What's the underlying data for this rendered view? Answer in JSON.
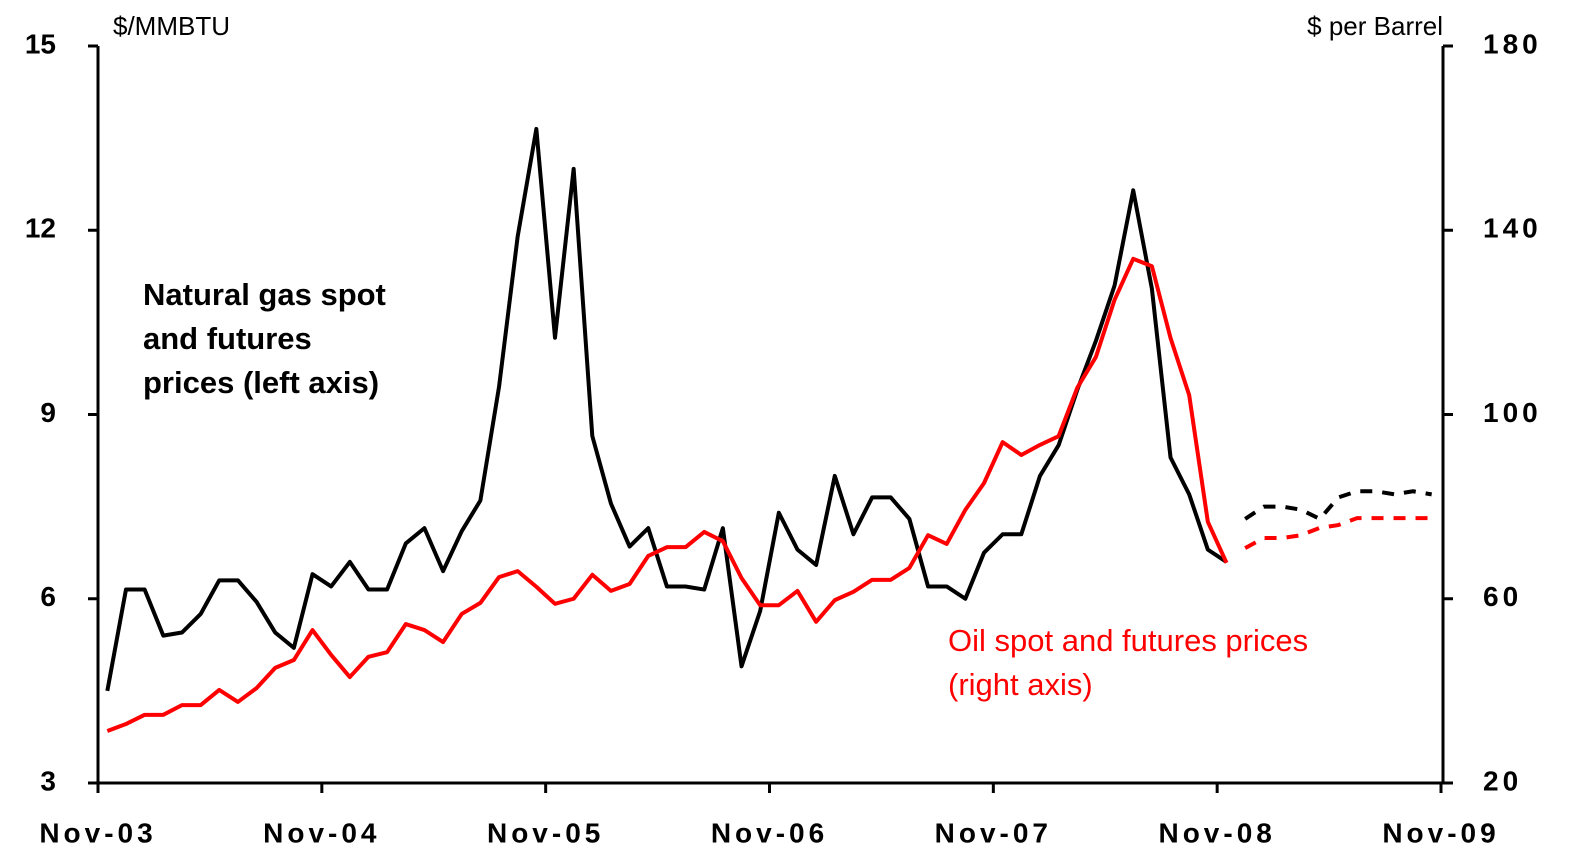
{
  "chart_data": {
    "type": "line",
    "y_label": "$/MMBTU",
    "y2_label": "$ per Barrel",
    "annotations": [
      {
        "lines": [
          "Natural gas spot",
          "and futures",
          "prices (left axis)"
        ],
        "color": "#000000"
      },
      {
        "lines": [
          "Oil spot and futures prices",
          "(right axis)"
        ],
        "color": "#ff0000"
      }
    ],
    "x": [
      0.5,
      1.5,
      2.5,
      3.5,
      4.5,
      5.5,
      6.5,
      7.5,
      8.5,
      9.5,
      10.5,
      11.5,
      12.5,
      13.5,
      14.5,
      15.5,
      16.5,
      17.5,
      18.5,
      19.5,
      20.5,
      21.5,
      22.5,
      23.5,
      24.5,
      25.5,
      26.5,
      27.5,
      28.5,
      29.5,
      30.5,
      31.5,
      32.5,
      33.5,
      34.5,
      35.5,
      36.5,
      37.5,
      38.5,
      39.5,
      40.5,
      41.5,
      42.5,
      43.5,
      44.5,
      45.5,
      46.5,
      47.5,
      48.5,
      49.5,
      50.5,
      51.5,
      52.5,
      53.5,
      54.5,
      55.5,
      56.5,
      57.5,
      58.5,
      59.5,
      60.5,
      61.5,
      62.5,
      63.5,
      64.5,
      65.5,
      66.5,
      67.5,
      68.5,
      69.5,
      70.5,
      71.5
    ],
    "xlim": [
      0,
      72
    ],
    "xticks": [
      {
        "value": 0,
        "label": "Nov-03"
      },
      {
        "value": 12,
        "label": "Nov-04"
      },
      {
        "value": 24,
        "label": "Nov-05"
      },
      {
        "value": 36,
        "label": "Nov-06"
      },
      {
        "value": 48,
        "label": "Nov-07"
      },
      {
        "value": 60,
        "label": "Nov-08"
      },
      {
        "value": 72,
        "label": "Nov-09"
      }
    ],
    "ylim": [
      3,
      15
    ],
    "yticks": [
      3,
      6,
      9,
      12,
      15
    ],
    "y2lim": [
      20,
      180
    ],
    "y2ticks": [
      20,
      60,
      100,
      140,
      180
    ],
    "series": [
      {
        "color": "#000000",
        "dash": false,
        "axis": "y",
        "values": [
          4.5,
          6.15,
          6.15,
          5.4,
          5.45,
          5.75,
          6.3,
          6.3,
          5.95,
          5.45,
          5.2,
          6.4,
          6.2,
          6.6,
          6.15,
          6.15,
          6.9,
          7.15,
          6.45,
          7.1,
          7.6,
          9.45,
          11.9,
          13.65,
          10.25,
          13.0,
          8.65,
          7.55,
          6.85,
          7.15,
          6.2,
          6.2,
          6.15,
          7.15,
          4.9,
          5.8,
          7.4,
          6.8,
          6.55,
          8.0,
          7.05,
          7.65,
          7.65,
          7.3,
          6.2,
          6.2,
          6.0,
          6.75,
          7.05,
          7.05,
          8.0,
          8.5,
          9.4,
          10.2,
          11.1,
          12.65,
          11.05,
          8.3,
          7.7,
          6.8,
          6.6,
          null,
          null,
          null,
          null,
          null,
          null,
          null,
          null,
          null,
          null,
          null
        ]
      },
      {
        "color": "#000000",
        "dash": true,
        "axis": "y",
        "values": [
          null,
          null,
          null,
          null,
          null,
          null,
          null,
          null,
          null,
          null,
          null,
          null,
          null,
          null,
          null,
          null,
          null,
          null,
          null,
          null,
          null,
          null,
          null,
          null,
          null,
          null,
          null,
          null,
          null,
          null,
          null,
          null,
          null,
          null,
          null,
          null,
          null,
          null,
          null,
          null,
          null,
          null,
          null,
          null,
          null,
          null,
          null,
          null,
          null,
          null,
          null,
          null,
          null,
          null,
          null,
          null,
          null,
          null,
          null,
          null,
          null,
          7.3,
          7.5,
          7.5,
          7.45,
          7.3,
          7.65,
          7.75,
          7.75,
          7.7,
          7.75,
          7.7
        ]
      },
      {
        "color": "#ff0000",
        "dash": false,
        "axis": "y2",
        "values": [
          31.3,
          32.8,
          34.8,
          34.8,
          36.9,
          36.9,
          40.2,
          37.6,
          40.6,
          45,
          46.7,
          53.2,
          47.8,
          43,
          47.4,
          48.4,
          54.5,
          53.2,
          50.6,
          56.7,
          59.1,
          64.7,
          66,
          62.6,
          58.9,
          60,
          65.2,
          61.7,
          63.2,
          69.3,
          71.2,
          71.2,
          74.5,
          72.5,
          64.5,
          58.6,
          58.6,
          61.7,
          55,
          59.7,
          61.5,
          64.1,
          64.1,
          66.7,
          73.8,
          71.9,
          79.3,
          85.1,
          94,
          91.2,
          93.4,
          95.3,
          105.8,
          112.5,
          124.9,
          133.8,
          132.2,
          116.6,
          104.2,
          76.7,
          67.8,
          null,
          null,
          null,
          null,
          null,
          null,
          null,
          null,
          null,
          null,
          null
        ]
      },
      {
        "color": "#ff0000",
        "dash": true,
        "axis": "y2",
        "values": [
          null,
          null,
          null,
          null,
          null,
          null,
          null,
          null,
          null,
          null,
          null,
          null,
          null,
          null,
          null,
          null,
          null,
          null,
          null,
          null,
          null,
          null,
          null,
          null,
          null,
          null,
          null,
          null,
          null,
          null,
          null,
          null,
          null,
          null,
          null,
          null,
          null,
          null,
          null,
          null,
          null,
          null,
          null,
          null,
          null,
          null,
          null,
          null,
          null,
          null,
          null,
          null,
          null,
          null,
          null,
          null,
          null,
          null,
          null,
          null,
          null,
          71,
          73.2,
          73.2,
          73.8,
          75.4,
          76,
          77.5,
          77.5,
          77.5,
          77.5,
          77.5
        ]
      }
    ]
  }
}
